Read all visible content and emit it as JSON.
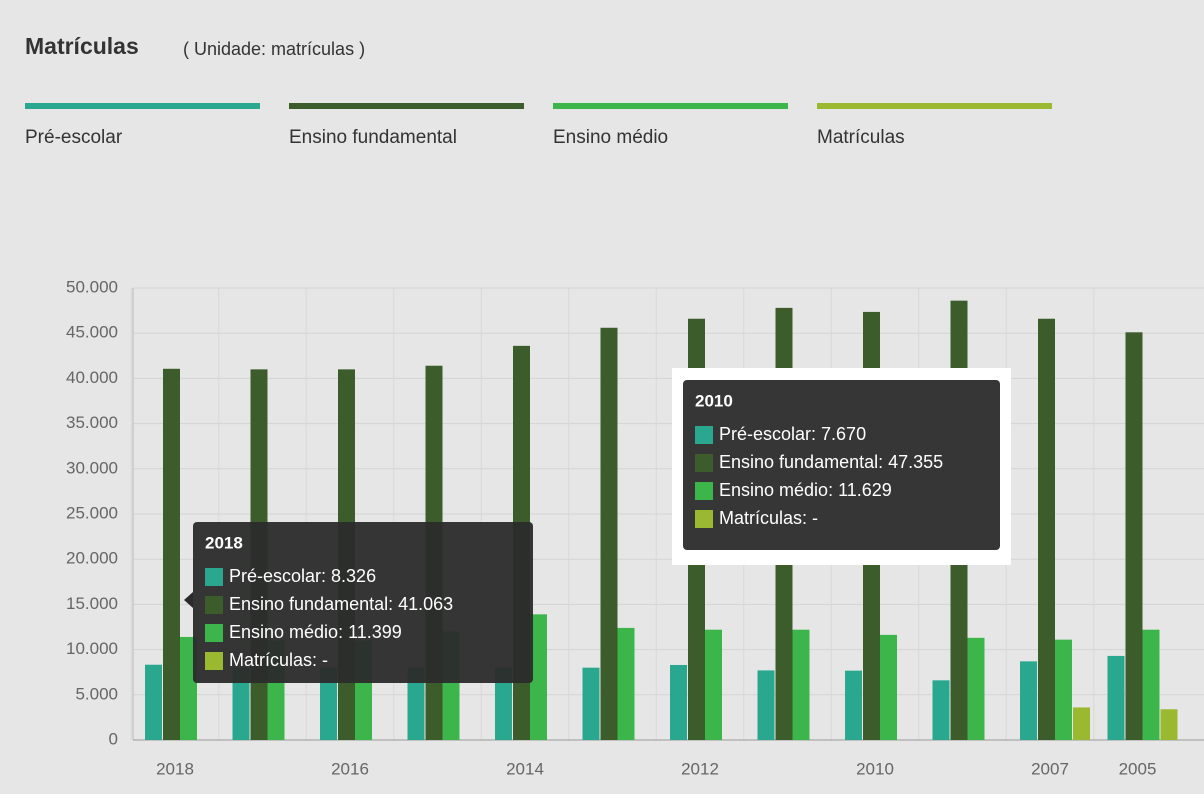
{
  "chart_data": {
    "type": "bar",
    "title": "Matrículas",
    "subtitle": "( Unidade: matrículas )",
    "categories": [
      "2018",
      null,
      "2016",
      null,
      "2014",
      null,
      "2012",
      null,
      "2010",
      null,
      "2007",
      "2005"
    ],
    "series": [
      {
        "name": "Pré-escolar",
        "color": "#2aa88f",
        "values": [
          8326,
          8000,
          8000,
          8000,
          8000,
          8000,
          8300,
          7700,
          7670,
          6600,
          8700,
          9300
        ]
      },
      {
        "name": "Ensino fundamental",
        "color": "#3d5c2c",
        "values": [
          41063,
          41000,
          41000,
          41400,
          43600,
          45600,
          46600,
          47800,
          47355,
          48600,
          46600,
          45100
        ]
      },
      {
        "name": "Ensino médio",
        "color": "#3cb54a",
        "values": [
          11399,
          11000,
          11000,
          12000,
          13900,
          12400,
          12200,
          12200,
          11629,
          11300,
          11100,
          12200
        ]
      },
      {
        "name": "Matrículas",
        "color": "#9ab830",
        "values": [
          null,
          null,
          null,
          null,
          null,
          null,
          null,
          null,
          null,
          null,
          3600,
          3400
        ]
      }
    ],
    "ylim": [
      0,
      50000
    ],
    "yticks": [
      0,
      {
        "value": 5000,
        "label": "5.000"
      },
      {
        "value": 10000,
        "label": "10.000"
      },
      {
        "value": 15000,
        "label": "15.000"
      },
      {
        "value": 20000,
        "label": "20.000"
      },
      {
        "value": 25000,
        "label": "25.000"
      },
      {
        "value": 30000,
        "label": "30.000"
      },
      {
        "value": 35000,
        "label": "35.000"
      },
      {
        "value": 40000,
        "label": "40.000"
      },
      {
        "value": 45000,
        "label": "45.000"
      },
      {
        "value": 50000,
        "label": "50.000"
      }
    ],
    "grid": true,
    "tooltips": [
      {
        "title": "2018",
        "lines": [
          "Pré-escolar: 8.326",
          "Ensino fundamental: 41.063",
          "Ensino médio: 11.399",
          "Matrículas: -"
        ]
      },
      {
        "title": "2010",
        "lines": [
          "Pré-escolar: 7.670",
          "Ensino fundamental: 47.355",
          "Ensino médio: 11.629",
          "Matrículas: -"
        ]
      }
    ]
  }
}
